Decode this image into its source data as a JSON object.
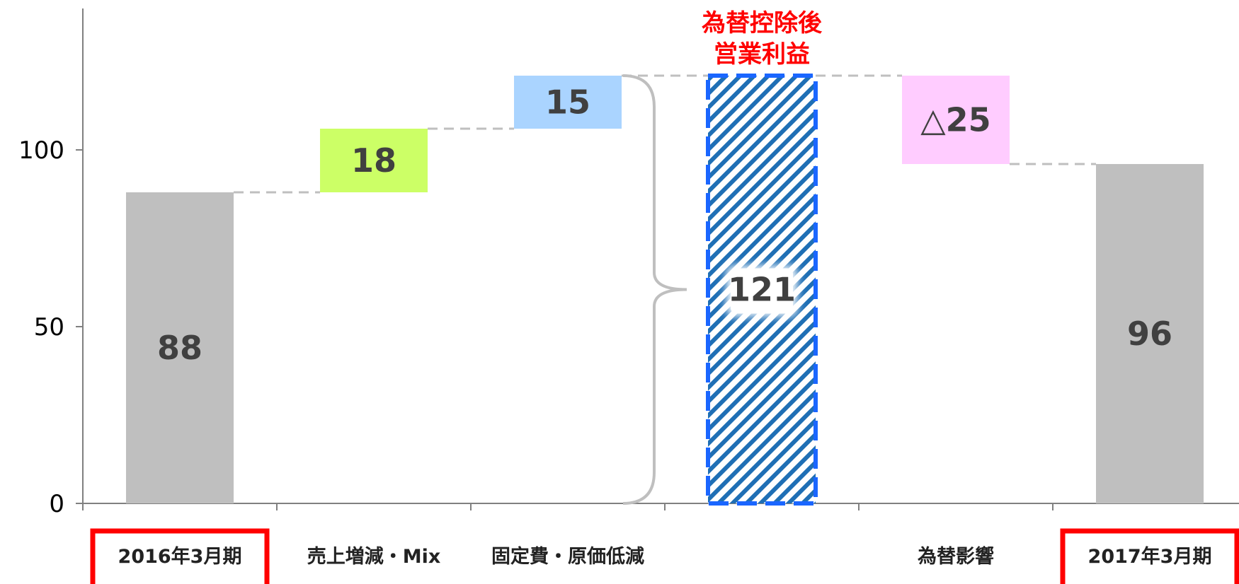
{
  "chart_data": {
    "type": "bar",
    "subtype": "waterfall",
    "categories": [
      "2016年3月期",
      "売上増減・Mix",
      "固定費・原価低減",
      "",
      "為替影響",
      "2017年3月期"
    ],
    "values": [
      88,
      18,
      15,
      121,
      -25,
      96
    ],
    "value_labels": [
      "88",
      "18",
      "15",
      "121",
      "△25",
      "96"
    ],
    "bar_kind": [
      "total",
      "delta",
      "delta",
      "subtotal",
      "delta",
      "total"
    ],
    "ylim": [
      0,
      140
    ],
    "yticks": [
      0,
      50,
      100
    ],
    "ytick_labels": [
      "0",
      "50",
      "100"
    ],
    "grid": false,
    "legend": "none",
    "highlighted_categories": [
      "2016年3月期",
      "2017年3月期"
    ],
    "annotation": {
      "lines": [
        "為替控除後",
        "営業利益"
      ],
      "target_category_index": 3
    },
    "colors": {
      "total": "#bfbfbf",
      "sales": "#ccff66",
      "fixed_cost": "#aad4ff",
      "fx": "#ffccff",
      "subtotal_hatch": "#1f6fb5",
      "subtotal_border": "#1a66ff",
      "annotation": "#ff0000",
      "highlight_box": "#ff0000",
      "connector": "#bfbfbf",
      "value_text": "#404040"
    }
  }
}
